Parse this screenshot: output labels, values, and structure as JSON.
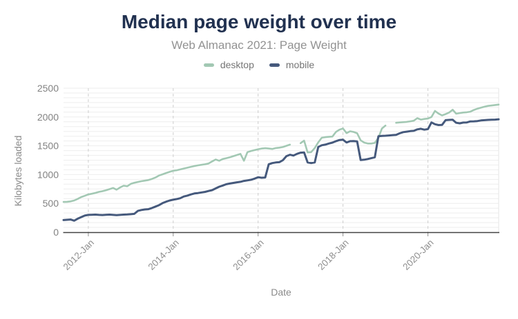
{
  "title": "Median page weight over time",
  "subtitle": "Web Almanac 2021: Page Weight",
  "legend": [
    {
      "label": "desktop",
      "color": "#a2c8b3"
    },
    {
      "label": "mobile",
      "color": "#45597c"
    }
  ],
  "colors": {
    "title_text": "#213150",
    "subtitle_text": "#929292",
    "tick_text": "#8f8f8f",
    "axis_line": "#424242",
    "minor_grid": "#eeeeee",
    "dashed_grid": "#cdcdcd",
    "edge_grid": "#e6e6e6",
    "desktop_series": "#a2c8b3",
    "mobile_series": "#45597c"
  },
  "chart_data": {
    "type": "line",
    "title": "Median page weight over time",
    "subtitle": "Web Almanac 2021: Page Weight",
    "xlabel": "Date",
    "ylabel": "Kilobytes loaded",
    "ylim": [
      0,
      2500
    ],
    "y_ticks": [
      0,
      500,
      1000,
      1500,
      2000,
      2500
    ],
    "y_minor_divisions": 30,
    "grid": {
      "horizontal_minor": true,
      "vertical_dashed": true,
      "legend_position": "top-center"
    },
    "x_interval": "monthly",
    "x_range_start": "2011-Jun",
    "x_range_end": "2021-Sep",
    "x_tick_labels": [
      "2012-Jan",
      "2014-Jan",
      "2016-Jan",
      "2018-Jan",
      "2020-Jan"
    ],
    "x_tick_month_index": [
      7,
      31,
      55,
      79,
      103
    ],
    "series": [
      {
        "name": "desktop",
        "color": "#a2c8b3",
        "values": [
          525,
          528,
          535,
          550,
          578,
          610,
          632,
          656,
          668,
          682,
          700,
          712,
          728,
          748,
          768,
          738,
          778,
          808,
          798,
          838,
          858,
          872,
          885,
          895,
          905,
          925,
          950,
          985,
          1005,
          1028,
          1048,
          1066,
          1075,
          1090,
          1105,
          1120,
          1135,
          1148,
          1160,
          1170,
          1180,
          1192,
          1228,
          1262,
          1240,
          1270,
          1285,
          1300,
          1320,
          1340,
          1360,
          1240,
          1390,
          1410,
          1425,
          1440,
          1452,
          1458,
          1452,
          1445,
          1460,
          1468,
          1478,
          1500,
          1520,
          null,
          null,
          1545,
          1590,
          1385,
          1390,
          1460,
          1560,
          1640,
          1650,
          1655,
          1660,
          1740,
          1780,
          1800,
          1720,
          1752,
          1740,
          1718,
          1595,
          1555,
          1540,
          1540,
          1550,
          1640,
          1800,
          1850,
          null,
          null,
          1900,
          1905,
          1910,
          1915,
          1925,
          1935,
          1980,
          1955,
          1965,
          1972,
          2000,
          2105,
          2060,
          2028,
          2050,
          2078,
          2125,
          2058,
          2068,
          2078,
          2082,
          2092,
          2122,
          2145,
          2162,
          2178,
          2192,
          2200,
          2208,
          2215
        ]
      },
      {
        "name": "mobile",
        "color": "#45597c",
        "values": [
          210,
          215,
          220,
          200,
          235,
          262,
          288,
          300,
          303,
          305,
          300,
          298,
          302,
          305,
          300,
          296,
          300,
          305,
          308,
          312,
          318,
          370,
          385,
          395,
          400,
          420,
          445,
          470,
          505,
          530,
          550,
          565,
          575,
          590,
          620,
          635,
          655,
          672,
          680,
          690,
          700,
          715,
          730,
          760,
          790,
          810,
          833,
          845,
          855,
          866,
          875,
          890,
          900,
          910,
          930,
          955,
          945,
          950,
          1180,
          1200,
          1210,
          1215,
          1250,
          1320,
          1345,
          1330,
          1360,
          1380,
          1385,
          1210,
          1200,
          1210,
          1480,
          1510,
          1520,
          1540,
          1555,
          1580,
          1600,
          1605,
          1558,
          1580,
          1582,
          1575,
          1252,
          1258,
          1270,
          1285,
          1300,
          1665,
          1672,
          1675,
          1680,
          1685,
          1690,
          1717,
          1737,
          1745,
          1755,
          1760,
          1785,
          1795,
          1780,
          1790,
          1905,
          1875,
          1860,
          1862,
          1945,
          1950,
          1952,
          1900,
          1890,
          1903,
          1905,
          1923,
          1925,
          1930,
          1940,
          1945,
          1950,
          1952,
          1955,
          1960
        ]
      }
    ]
  }
}
